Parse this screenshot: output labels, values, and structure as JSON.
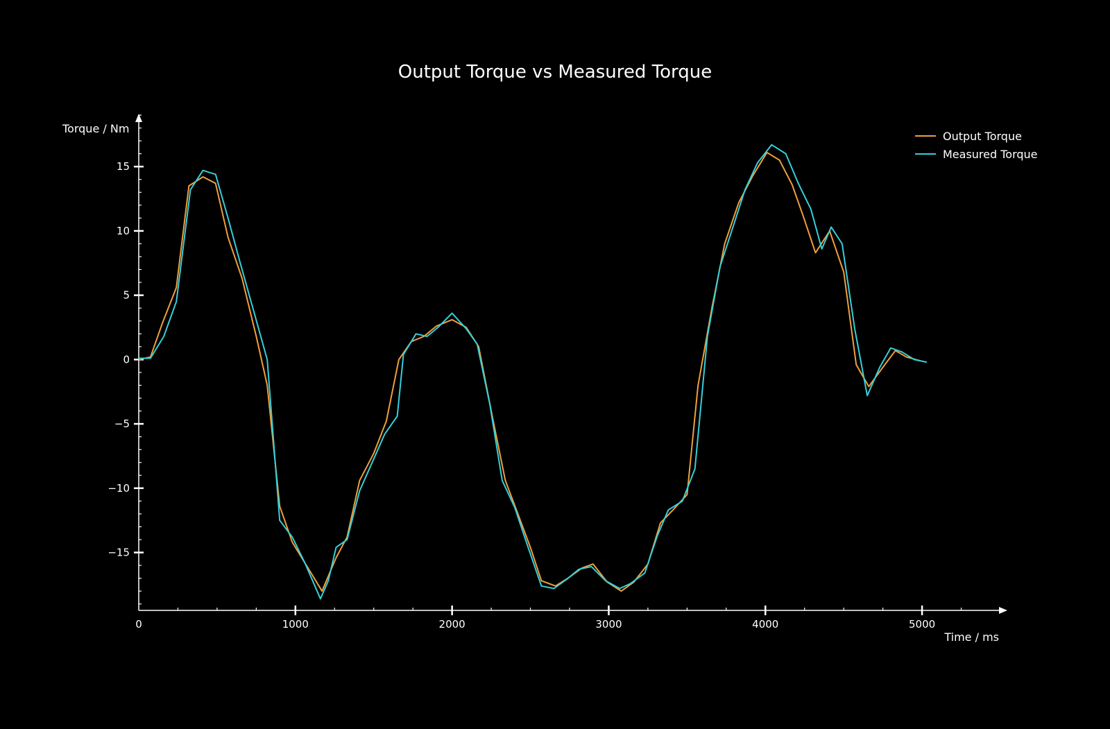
{
  "chart_data": {
    "type": "line",
    "title": "Output Torque vs Measured Torque",
    "xlabel": "Time / ms",
    "ylabel": "Torque / Nm",
    "xlim": [
      0,
      5500
    ],
    "ylim": [
      -19.5,
      19
    ],
    "x_ticks": [
      0,
      1000,
      2000,
      3000,
      4000,
      5000
    ],
    "x_tick_labels": [
      "0",
      "1000",
      "2000",
      "3000",
      "4000",
      "5000"
    ],
    "y_ticks": [
      -15,
      -10,
      -5,
      0,
      5,
      10,
      15
    ],
    "y_tick_labels": [
      "−15",
      "−10",
      "−5",
      "0",
      "5",
      "10",
      "15"
    ],
    "grid": false,
    "legend_position": "top-right",
    "background": "#000000",
    "axis_color": "#ffffff",
    "series": [
      {
        "name": "Output Torque",
        "color": "#f0a03c",
        "x": [
          0,
          75,
          150,
          240,
          320,
          410,
          490,
          570,
          660,
          750,
          820,
          900,
          980,
          1060,
          1170,
          1260,
          1330,
          1410,
          1500,
          1580,
          1660,
          1740,
          1820,
          1900,
          2000,
          2090,
          2170,
          2260,
          2340,
          2420,
          2500,
          2570,
          2660,
          2740,
          2830,
          2900,
          2990,
          3080,
          3160,
          3250,
          3330,
          3410,
          3500,
          3570,
          3660,
          3740,
          3830,
          3920,
          4010,
          4090,
          4170,
          4240,
          4320,
          4410,
          4500,
          4580,
          4660,
          4750,
          4830,
          4900,
          4990
        ],
        "y": [
          0,
          0.2,
          2.8,
          5.6,
          13.5,
          14.2,
          13.7,
          9.5,
          6.3,
          1.8,
          -2,
          -11.4,
          -14.2,
          -15.8,
          -18,
          -15.4,
          -13.8,
          -9.4,
          -7.3,
          -4.8,
          0,
          1.4,
          1.8,
          2.6,
          3.1,
          2.5,
          1,
          -4.6,
          -9.4,
          -12,
          -14.6,
          -17.2,
          -17.6,
          -17,
          -16.2,
          -15.9,
          -17.3,
          -18,
          -17.3,
          -15.9,
          -12.7,
          -11.7,
          -10.5,
          -2,
          4.1,
          9,
          12.2,
          14.3,
          16.1,
          15.5,
          13.6,
          11.2,
          8.3,
          10,
          6.8,
          -0.4,
          -2.1,
          -0.6,
          0.7,
          0.2,
          -0.1
        ]
      },
      {
        "name": "Measured Torque",
        "color": "#35d0dc",
        "x": [
          0,
          75,
          160,
          240,
          330,
          410,
          490,
          570,
          650,
          740,
          820,
          900,
          980,
          1060,
          1160,
          1210,
          1260,
          1330,
          1410,
          1490,
          1570,
          1650,
          1690,
          1770,
          1840,
          1910,
          2000,
          2090,
          2160,
          2240,
          2320,
          2400,
          2480,
          2570,
          2650,
          2730,
          2810,
          2890,
          2980,
          3070,
          3140,
          3230,
          3310,
          3380,
          3470,
          3550,
          3630,
          3710,
          3790,
          3870,
          3950,
          4040,
          4130,
          4210,
          4290,
          4360,
          4420,
          4490,
          4570,
          4650,
          4730,
          4800,
          4870,
          4950,
          5030
        ],
        "y": [
          0.1,
          0.1,
          1.8,
          4.5,
          13.2,
          14.7,
          14.4,
          11,
          7.4,
          3.5,
          0,
          -12.5,
          -13.8,
          -15.8,
          -18.6,
          -17.2,
          -14.6,
          -14,
          -10.2,
          -8,
          -5.8,
          -4.4,
          0.4,
          2,
          1.8,
          2.5,
          3.6,
          2.4,
          1.2,
          -3.4,
          -9.4,
          -11.5,
          -14.4,
          -17.6,
          -17.8,
          -17.1,
          -16.3,
          -16.1,
          -17.2,
          -17.8,
          -17.4,
          -16.6,
          -13.7,
          -11.7,
          -11,
          -8.5,
          1.8,
          7.2,
          10.2,
          13.2,
          15.3,
          16.7,
          16,
          13.7,
          11.7,
          8.6,
          10.3,
          9,
          2.4,
          -2.8,
          -0.6,
          0.9,
          0.6,
          0,
          -0.2
        ]
      }
    ]
  }
}
